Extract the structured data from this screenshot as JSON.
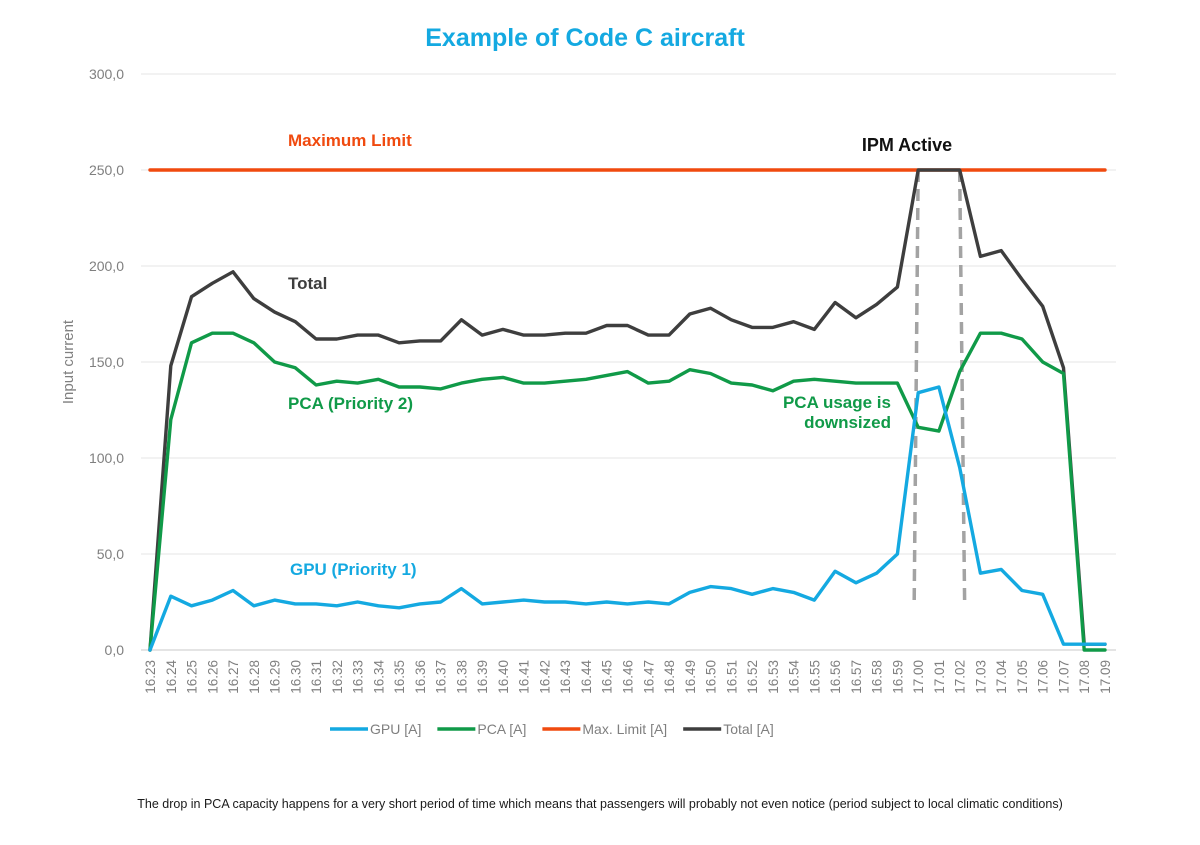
{
  "chart_data": {
    "type": "line",
    "title": "Example of Code C aircraft",
    "xlabel": "",
    "ylabel": "Input current",
    "ylim": [
      0,
      300
    ],
    "yticks": [
      "0,0",
      "50,0",
      "100,0",
      "150,0",
      "200,0",
      "250,0",
      "300,0"
    ],
    "grid": true,
    "legend_position": "bottom",
    "x": [
      "16.23",
      "16.24",
      "16.25",
      "16.26",
      "16.27",
      "16.28",
      "16.29",
      "16.30",
      "16.31",
      "16.32",
      "16.33",
      "16.34",
      "16.35",
      "16.36",
      "16.37",
      "16.38",
      "16.39",
      "16.40",
      "16.41",
      "16.42",
      "16.43",
      "16.44",
      "16.45",
      "16.46",
      "16.47",
      "16.48",
      "16.49",
      "16.50",
      "16.51",
      "16.52",
      "16.53",
      "16.54",
      "16.55",
      "16.56",
      "16.57",
      "16.58",
      "16.59",
      "17.00",
      "17.01",
      "17.02",
      "17.03",
      "17.04",
      "17.05",
      "17.06",
      "17.07",
      "17.08",
      "17.09"
    ],
    "series": [
      {
        "name": "GPU [A]",
        "color": "#14a9e1",
        "values": [
          0,
          28,
          23,
          26,
          31,
          23,
          26,
          24,
          24,
          23,
          25,
          23,
          22,
          24,
          25,
          32,
          24,
          25,
          26,
          25,
          25,
          24,
          25,
          24,
          25,
          24,
          30,
          33,
          32,
          29,
          32,
          30,
          26,
          41,
          35,
          40,
          50,
          134,
          137,
          95,
          40,
          42,
          31,
          29,
          3,
          3,
          3
        ]
      },
      {
        "name": "PCA [A]",
        "color": "#109a48",
        "values": [
          0,
          120,
          160,
          165,
          165,
          160,
          150,
          147,
          138,
          140,
          139,
          141,
          137,
          137,
          136,
          139,
          141,
          142,
          139,
          139,
          140,
          141,
          143,
          145,
          139,
          140,
          146,
          144,
          139,
          138,
          135,
          140,
          141,
          140,
          139,
          139,
          139,
          116,
          114,
          145,
          165,
          165,
          162,
          150,
          144,
          0,
          0
        ]
      },
      {
        "name": "Max. Limit [A]",
        "color": "#f04a0f",
        "values": [
          250,
          250,
          250,
          250,
          250,
          250,
          250,
          250,
          250,
          250,
          250,
          250,
          250,
          250,
          250,
          250,
          250,
          250,
          250,
          250,
          250,
          250,
          250,
          250,
          250,
          250,
          250,
          250,
          250,
          250,
          250,
          250,
          250,
          250,
          250,
          250,
          250,
          250,
          250,
          250,
          250,
          250,
          250,
          250,
          250,
          250,
          250
        ]
      },
      {
        "name": "Total [A]",
        "color": "#3e3e3e",
        "values": [
          0,
          148,
          184,
          191,
          197,
          183,
          176,
          171,
          162,
          162,
          164,
          164,
          160,
          161,
          161,
          172,
          164,
          167,
          164,
          164,
          165,
          165,
          169,
          169,
          164,
          164,
          175,
          178,
          172,
          168,
          168,
          171,
          167,
          181,
          173,
          180,
          189,
          250,
          250,
          250,
          205,
          208,
          193,
          179,
          147,
          3,
          3
        ]
      }
    ],
    "annotations": {
      "max_limit": "Maximum Limit",
      "ipm": "IPM Active",
      "total": "Total",
      "pca": "PCA (Priority 2)",
      "pca_downsized_1": "PCA usage is",
      "pca_downsized_2": "downsized",
      "gpu": "GPU (Priority 1)"
    },
    "ipm_window": [
      "17.00",
      "17.02"
    ]
  },
  "footnote": "The drop in PCA capacity happens for a very short period of time which means that passengers will probably not even notice  (period subject to local climatic conditions)"
}
